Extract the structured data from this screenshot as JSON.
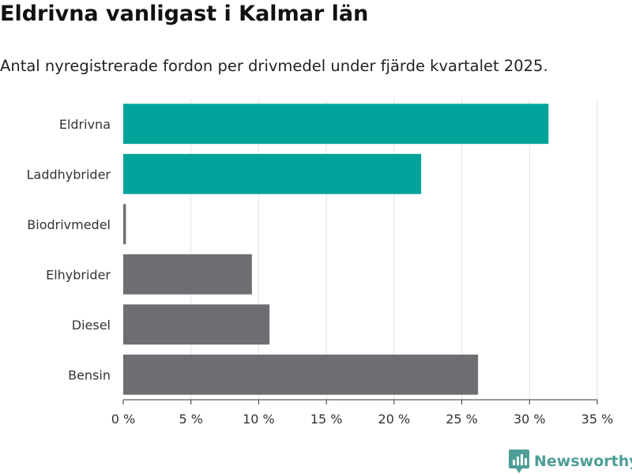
{
  "chart_data": {
    "type": "bar",
    "orientation": "horizontal",
    "title": "Eldrivna vanligast i Kalmar län",
    "subtitle": "Antal nyregistrerade fordon per drivmedel under fjärde kvartalet 2025.",
    "categories": [
      "Eldrivna",
      "Laddhybrider",
      "Biodrivmedel",
      "Elhybrider",
      "Diesel",
      "Bensin"
    ],
    "values": [
      31.4,
      22.0,
      0.2,
      9.5,
      10.8,
      26.2
    ],
    "highlight": [
      true,
      true,
      false,
      false,
      false,
      false
    ],
    "colors": {
      "highlight": "#00a39a",
      "default": "#6d6d72"
    },
    "xlim": [
      0,
      35
    ],
    "xticks": [
      0,
      5,
      10,
      15,
      20,
      25,
      30,
      35
    ],
    "tick_suffix": " %",
    "xlabel": "",
    "ylabel": "",
    "grid": "vertical"
  },
  "brand": {
    "name": "Newsworthy",
    "icon": "bar-chart-speech-bubble-icon",
    "color": "#4e9e97"
  }
}
